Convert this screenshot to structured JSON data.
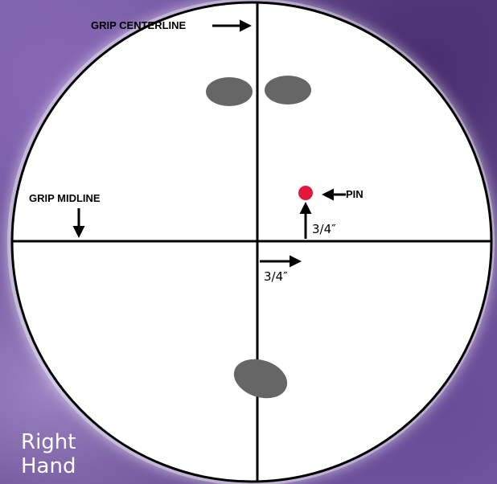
{
  "labels": {
    "grip_centerline": "GRIP CENTERLINE",
    "grip_midline": "GRIP MIDLINE",
    "pin": "PIN",
    "vertical_offset": "3/4″",
    "horizontal_offset": "3/4″",
    "hand_line1": "Right",
    "hand_line2": "Hand"
  },
  "colors": {
    "pin": "#e0183a",
    "finger_hole": "#666666",
    "circle_fill": "#ffffff",
    "line": "#000000"
  }
}
